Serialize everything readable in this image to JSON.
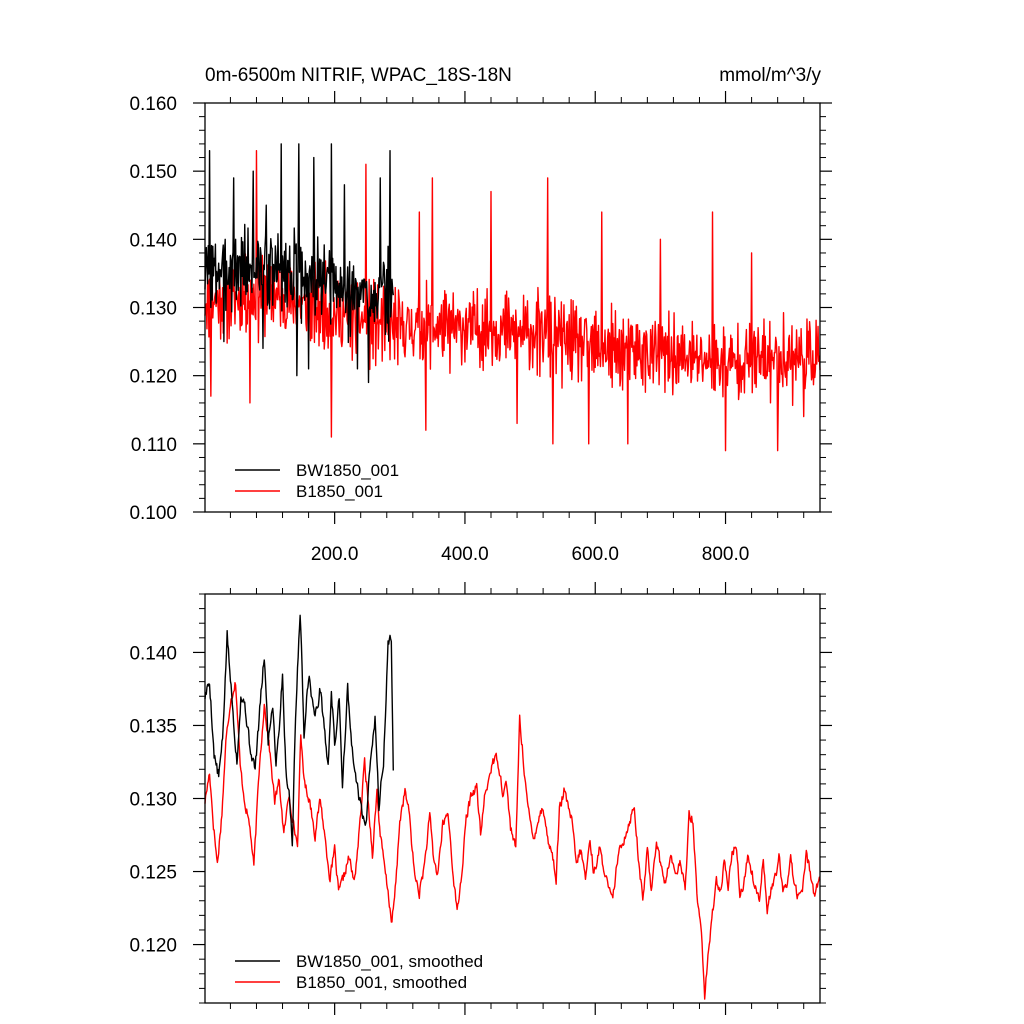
{
  "colors": {
    "series_bw": "#000000",
    "series_b": "#ff0000",
    "frame": "#000000",
    "background": "#ffffff"
  },
  "chart_data": [
    {
      "type": "line",
      "title": "0m-6500m NITRIF, WPAC_18S-18N",
      "units": "mmol/m^3/y",
      "xlabel": "",
      "ylabel": "",
      "xlim": [
        1,
        945
      ],
      "ylim": [
        0.1,
        0.16
      ],
      "yticks": [
        0.1,
        0.11,
        0.12,
        0.13,
        0.14,
        0.15,
        0.16
      ],
      "ytick_labels": [
        "0.100",
        "0.110",
        "0.120",
        "0.130",
        "0.140",
        "0.150",
        "0.160"
      ],
      "xticks": [
        200,
        400,
        600,
        800
      ],
      "xtick_labels": [
        "200.0",
        "400.0",
        "600.0",
        "800.0"
      ],
      "legend_position": "bottom-left",
      "series": [
        {
          "name": "BW1850_001",
          "color": "#000000",
          "x_range": [
            1,
            290
          ],
          "num_points": 290,
          "sampling": "annual values, every year",
          "mean_trend": [
            [
              1,
              0.135
            ],
            [
              60,
              0.136
            ],
            [
              150,
              0.135
            ],
            [
              220,
              0.132
            ],
            [
              290,
              0.132
            ]
          ],
          "amplitude": 0.0075,
          "seed": 3,
          "min": 0.119,
          "max": 0.154,
          "peaks": [
            [
              8,
              0.153
            ],
            [
              45,
              0.149
            ],
            [
              75,
              0.15
            ],
            [
              95,
              0.145
            ],
            [
              118,
              0.154
            ],
            [
              145,
              0.154
            ],
            [
              168,
              0.152
            ],
            [
              195,
              0.154
            ],
            [
              215,
              0.148
            ],
            [
              270,
              0.149
            ],
            [
              285,
              0.153
            ]
          ],
          "troughs": [
            [
              30,
              0.125
            ],
            [
              90,
              0.124
            ],
            [
              142,
              0.12
            ],
            [
              160,
              0.121
            ],
            [
              235,
              0.121
            ],
            [
              252,
              0.119
            ]
          ]
        },
        {
          "name": "B1850_001",
          "color": "#ff0000",
          "x_range": [
            1,
            945
          ],
          "num_points": 945,
          "sampling": "annual values, every year",
          "mean_trend": [
            [
              1,
              0.131
            ],
            [
              100,
              0.132
            ],
            [
              200,
              0.129
            ],
            [
              300,
              0.127
            ],
            [
              420,
              0.127
            ],
            [
              520,
              0.126
            ],
            [
              600,
              0.124
            ],
            [
              700,
              0.123
            ],
            [
              800,
              0.122
            ],
            [
              945,
              0.123
            ]
          ],
          "amplitude": 0.0072,
          "seed": 11,
          "min": 0.109,
          "max": 0.153,
          "peaks": [
            [
              80,
              0.153
            ],
            [
              248,
              0.151
            ],
            [
              330,
              0.144
            ],
            [
              350,
              0.149
            ],
            [
              440,
              0.147
            ],
            [
              480,
              0.148
            ],
            [
              527,
              0.149
            ],
            [
              610,
              0.144
            ],
            [
              700,
              0.14
            ],
            [
              780,
              0.144
            ],
            [
              840,
              0.138
            ]
          ],
          "troughs": [
            [
              10,
              0.117
            ],
            [
              70,
              0.116
            ],
            [
              195,
              0.111
            ],
            [
              340,
              0.112
            ],
            [
              480,
              0.113
            ],
            [
              535,
              0.11
            ],
            [
              590,
              0.11
            ],
            [
              650,
              0.11
            ],
            [
              800,
              0.109
            ],
            [
              880,
              0.109
            ],
            [
              920,
              0.114
            ]
          ]
        }
      ]
    },
    {
      "type": "line",
      "title": "",
      "xlabel": "",
      "ylabel": "",
      "xlim": [
        1,
        945
      ],
      "ylim": [
        0.116,
        0.144
      ],
      "yticks": [
        0.12,
        0.125,
        0.13,
        0.135,
        0.14
      ],
      "ytick_labels": [
        "0.120",
        "0.125",
        "0.130",
        "0.135",
        "0.140"
      ],
      "xticks": [
        200,
        400,
        600,
        800
      ],
      "xtick_labels": [],
      "legend_position": "bottom-left",
      "series": [
        {
          "name": "BW1850_001, smoothed",
          "color": "#000000",
          "x_range": [
            1,
            290
          ],
          "wiggle": 0.0006,
          "seed": 5,
          "points": [
            [
              1,
              0.137
            ],
            [
              8,
              0.138
            ],
            [
              15,
              0.133
            ],
            [
              22,
              0.1315
            ],
            [
              28,
              0.134
            ],
            [
              35,
              0.1412
            ],
            [
              42,
              0.137
            ],
            [
              50,
              0.1325
            ],
            [
              56,
              0.137
            ],
            [
              62,
              0.1365
            ],
            [
              70,
              0.1335
            ],
            [
              78,
              0.132
            ],
            [
              85,
              0.136
            ],
            [
              92,
              0.1398
            ],
            [
              98,
              0.134
            ],
            [
              105,
              0.1365
            ],
            [
              110,
              0.1325
            ],
            [
              115,
              0.135
            ],
            [
              120,
              0.1385
            ],
            [
              125,
              0.132
            ],
            [
              130,
              0.1305
            ],
            [
              135,
              0.127
            ],
            [
              140,
              0.1355
            ],
            [
              147,
              0.143
            ],
            [
              153,
              0.1345
            ],
            [
              160,
              0.1385
            ],
            [
              165,
              0.137
            ],
            [
              170,
              0.1355
            ],
            [
              178,
              0.1375
            ],
            [
              185,
              0.1345
            ],
            [
              190,
              0.132
            ],
            [
              195,
              0.1375
            ],
            [
              200,
              0.1335
            ],
            [
              207,
              0.137
            ],
            [
              212,
              0.131
            ],
            [
              220,
              0.1375
            ],
            [
              226,
              0.1335
            ],
            [
              232,
              0.1315
            ],
            [
              240,
              0.1295
            ],
            [
              248,
              0.128
            ],
            [
              255,
              0.133
            ],
            [
              262,
              0.1355
            ],
            [
              268,
              0.1295
            ],
            [
              275,
              0.1325
            ],
            [
              282,
              0.1405
            ],
            [
              287,
              0.141
            ],
            [
              290,
              0.132
            ]
          ]
        },
        {
          "name": "B1850_001, smoothed",
          "color": "#ff0000",
          "x_range": [
            1,
            945
          ],
          "wiggle": 0.0005,
          "seed": 17,
          "points": [
            [
              1,
              0.1298
            ],
            [
              8,
              0.1318
            ],
            [
              14,
              0.1282
            ],
            [
              20,
              0.1255
            ],
            [
              27,
              0.129
            ],
            [
              33,
              0.1338
            ],
            [
              40,
              0.1367
            ],
            [
              48,
              0.138
            ],
            [
              55,
              0.1322
            ],
            [
              62,
              0.1298
            ],
            [
              70,
              0.128
            ],
            [
              76,
              0.1253
            ],
            [
              84,
              0.1318
            ],
            [
              92,
              0.1365
            ],
            [
              100,
              0.1334
            ],
            [
              108,
              0.1298
            ],
            [
              115,
              0.1312
            ],
            [
              122,
              0.1275
            ],
            [
              130,
              0.1303
            ],
            [
              137,
              0.1282
            ],
            [
              143,
              0.1268
            ],
            [
              148,
              0.1342
            ],
            [
              154,
              0.131
            ],
            [
              162,
              0.1298
            ],
            [
              170,
              0.1275
            ],
            [
              178,
              0.13
            ],
            [
              186,
              0.127
            ],
            [
              193,
              0.1245
            ],
            [
              200,
              0.1265
            ],
            [
              206,
              0.1235
            ],
            [
              215,
              0.1248
            ],
            [
              222,
              0.126
            ],
            [
              230,
              0.1242
            ],
            [
              238,
              0.1278
            ],
            [
              246,
              0.1325
            ],
            [
              252,
              0.1295
            ],
            [
              258,
              0.1262
            ],
            [
              265,
              0.1305
            ],
            [
              270,
              0.1275
            ],
            [
              276,
              0.1255
            ],
            [
              282,
              0.1235
            ],
            [
              288,
              0.1215
            ],
            [
              294,
              0.1242
            ],
            [
              300,
              0.1285
            ],
            [
              308,
              0.1305
            ],
            [
              315,
              0.1288
            ],
            [
              322,
              0.125
            ],
            [
              330,
              0.1235
            ],
            [
              338,
              0.1255
            ],
            [
              346,
              0.1288
            ],
            [
              352,
              0.1258
            ],
            [
              358,
              0.1248
            ],
            [
              366,
              0.1282
            ],
            [
              374,
              0.129
            ],
            [
              382,
              0.1248
            ],
            [
              388,
              0.1222
            ],
            [
              395,
              0.1248
            ],
            [
              402,
              0.1286
            ],
            [
              410,
              0.1303
            ],
            [
              418,
              0.1308
            ],
            [
              424,
              0.1275
            ],
            [
              430,
              0.13
            ],
            [
              436,
              0.1312
            ],
            [
              442,
              0.1325
            ],
            [
              450,
              0.1328
            ],
            [
              458,
              0.1305
            ],
            [
              464,
              0.131
            ],
            [
              470,
              0.128
            ],
            [
              478,
              0.1265
            ],
            [
              484,
              0.1355
            ],
            [
              490,
              0.1325
            ],
            [
              497,
              0.1292
            ],
            [
              505,
              0.1272
            ],
            [
              512,
              0.1285
            ],
            [
              520,
              0.1295
            ],
            [
              527,
              0.1272
            ],
            [
              534,
              0.1262
            ],
            [
              540,
              0.1245
            ],
            [
              545,
              0.1292
            ],
            [
              552,
              0.1305
            ],
            [
              558,
              0.1295
            ],
            [
              564,
              0.1285
            ],
            [
              571,
              0.1255
            ],
            [
              578,
              0.1265
            ],
            [
              585,
              0.1245
            ],
            [
              592,
              0.1272
            ],
            [
              598,
              0.1248
            ],
            [
              606,
              0.1265
            ],
            [
              614,
              0.1252
            ],
            [
              620,
              0.1238
            ],
            [
              627,
              0.123
            ],
            [
              633,
              0.1255
            ],
            [
              640,
              0.1268
            ],
            [
              646,
              0.1275
            ],
            [
              653,
              0.1285
            ],
            [
              660,
              0.1295
            ],
            [
              667,
              0.1255
            ],
            [
              673,
              0.123
            ],
            [
              680,
              0.1265
            ],
            [
              686,
              0.1238
            ],
            [
              694,
              0.1272
            ],
            [
              700,
              0.1255
            ],
            [
              708,
              0.1242
            ],
            [
              716,
              0.1262
            ],
            [
              722,
              0.1248
            ],
            [
              730,
              0.1255
            ],
            [
              738,
              0.1238
            ],
            [
              744,
              0.129
            ],
            [
              750,
              0.1285
            ],
            [
              756,
              0.1235
            ],
            [
              762,
              0.1215
            ],
            [
              768,
              0.1165
            ],
            [
              774,
              0.1195
            ],
            [
              780,
              0.1222
            ],
            [
              786,
              0.1245
            ],
            [
              792,
              0.1235
            ],
            [
              798,
              0.1255
            ],
            [
              804,
              0.124
            ],
            [
              810,
              0.1262
            ],
            [
              816,
              0.1268
            ],
            [
              822,
              0.1236
            ],
            [
              828,
              0.124
            ],
            [
              834,
              0.1262
            ],
            [
              840,
              0.125
            ],
            [
              846,
              0.1238
            ],
            [
              852,
              0.1232
            ],
            [
              858,
              0.126
            ],
            [
              864,
              0.1222
            ],
            [
              870,
              0.1238
            ],
            [
              876,
              0.1245
            ],
            [
              882,
              0.126
            ],
            [
              888,
              0.1235
            ],
            [
              894,
              0.1242
            ],
            [
              900,
              0.126
            ],
            [
              906,
              0.124
            ],
            [
              912,
              0.1232
            ],
            [
              918,
              0.1238
            ],
            [
              924,
              0.1262
            ],
            [
              930,
              0.125
            ],
            [
              936,
              0.1235
            ],
            [
              945,
              0.1245
            ]
          ]
        }
      ]
    }
  ]
}
